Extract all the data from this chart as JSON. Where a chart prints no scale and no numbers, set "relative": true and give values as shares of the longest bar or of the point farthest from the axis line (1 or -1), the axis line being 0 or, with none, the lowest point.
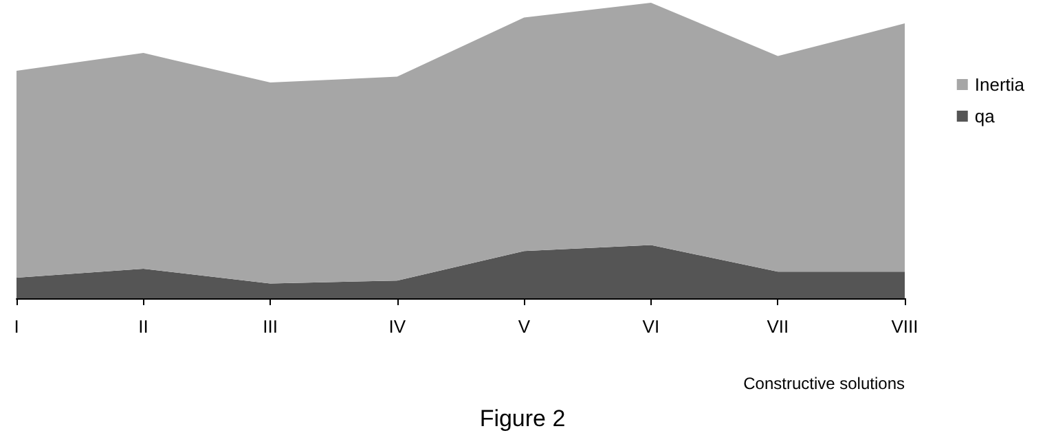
{
  "chart_data": {
    "type": "area",
    "relative": true,
    "stacked": true,
    "xlabel": "Constructive solutions",
    "annotations": [
      "Figure 2"
    ],
    "categories": [
      "I",
      "II",
      "III",
      "IV",
      "V",
      "VI",
      "VII",
      "VIII"
    ],
    "series": [
      {
        "name": "qa",
        "color": "#555555",
        "values": [
          0.07,
          0.1,
          0.05,
          0.06,
          0.16,
          0.18,
          0.09,
          0.09
        ]
      },
      {
        "name": "Inertia",
        "color": "#a6a6a6",
        "values": [
          0.7,
          0.73,
          0.68,
          0.69,
          0.79,
          0.82,
          0.73,
          0.84
        ]
      }
    ],
    "legend": "right"
  }
}
